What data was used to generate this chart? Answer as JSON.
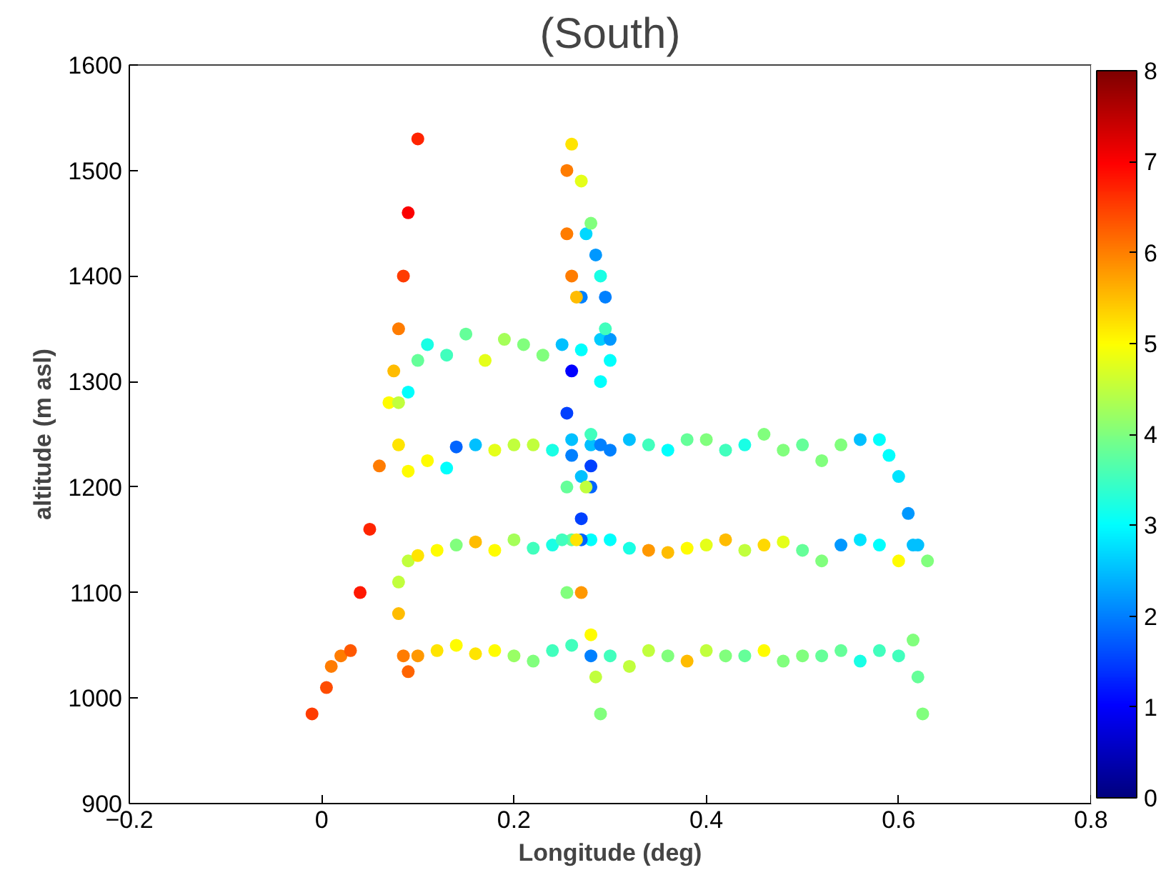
{
  "chart_data": {
    "type": "scatter",
    "title": "(South)",
    "xlabel": "Longitude (deg)",
    "ylabel": "altitude (m asl)",
    "xlim": [
      -0.2,
      0.8
    ],
    "xticks": [
      -0.2,
      0,
      0.2,
      0.4,
      0.6,
      0.8
    ],
    "ylim": [
      900,
      1600
    ],
    "yticks": [
      900,
      1000,
      1100,
      1200,
      1300,
      1400,
      1500,
      1600
    ],
    "clim": [
      0,
      8
    ],
    "cticks": [
      0,
      1,
      2,
      3,
      4,
      5,
      6,
      7,
      8
    ],
    "grid": false,
    "marker": "circle",
    "x": [
      -0.01,
      0.005,
      0.01,
      0.02,
      0.03,
      0.04,
      0.05,
      0.06,
      0.07,
      0.075,
      0.08,
      0.085,
      0.09,
      0.1,
      0.09,
      0.1,
      0.12,
      0.14,
      0.16,
      0.18,
      0.2,
      0.22,
      0.24,
      0.26,
      0.28,
      0.3,
      0.32,
      0.34,
      0.36,
      0.38,
      0.4,
      0.42,
      0.44,
      0.46,
      0.48,
      0.5,
      0.52,
      0.54,
      0.56,
      0.58,
      0.6,
      0.615,
      0.62,
      0.625,
      0.085,
      0.08,
      0.08,
      0.09,
      0.1,
      0.12,
      0.14,
      0.16,
      0.18,
      0.2,
      0.22,
      0.24,
      0.26,
      0.28,
      0.3,
      0.32,
      0.34,
      0.36,
      0.38,
      0.4,
      0.42,
      0.44,
      0.46,
      0.48,
      0.5,
      0.52,
      0.54,
      0.56,
      0.58,
      0.6,
      0.615,
      0.63,
      0.62,
      0.61,
      0.6,
      0.59,
      0.58,
      0.56,
      0.54,
      0.52,
      0.5,
      0.48,
      0.46,
      0.44,
      0.42,
      0.4,
      0.38,
      0.36,
      0.34,
      0.32,
      0.3,
      0.28,
      0.26,
      0.24,
      0.22,
      0.2,
      0.18,
      0.16,
      0.14,
      0.13,
      0.11,
      0.09,
      0.08,
      0.08,
      0.09,
      0.1,
      0.11,
      0.13,
      0.15,
      0.17,
      0.19,
      0.21,
      0.23,
      0.25,
      0.27,
      0.29,
      0.3,
      0.3,
      0.295,
      0.285,
      0.275,
      0.27,
      0.26,
      0.255,
      0.26,
      0.27,
      0.28,
      0.29,
      0.28,
      0.27,
      0.27,
      0.26,
      0.27,
      0.28,
      0.29,
      0.295,
      0.29,
      0.28,
      0.275,
      0.265,
      0.27,
      0.28,
      0.285,
      0.29,
      0.255,
      0.255,
      0.26,
      0.265,
      0.255,
      0.25,
      0.255
    ],
    "values": [
      985,
      1010,
      1030,
      1040,
      1045,
      1100,
      1160,
      1220,
      1280,
      1310,
      1350,
      1400,
      1460,
      1530,
      1025,
      1040,
      1045,
      1050,
      1042,
      1045,
      1040,
      1035,
      1045,
      1050,
      1040,
      1040,
      1030,
      1045,
      1040,
      1035,
      1045,
      1040,
      1040,
      1045,
      1035,
      1040,
      1040,
      1045,
      1035,
      1045,
      1040,
      1055,
      1020,
      985,
      1040,
      1080,
      1110,
      1130,
      1135,
      1140,
      1145,
      1148,
      1140,
      1150,
      1142,
      1145,
      1150,
      1150,
      1150,
      1142,
      1140,
      1138,
      1142,
      1145,
      1150,
      1140,
      1145,
      1148,
      1140,
      1130,
      1145,
      1150,
      1145,
      1130,
      1145,
      1130,
      1145,
      1175,
      1210,
      1230,
      1245,
      1245,
      1240,
      1225,
      1240,
      1235,
      1250,
      1240,
      1235,
      1245,
      1245,
      1235,
      1240,
      1245,
      1235,
      1240,
      1245,
      1235,
      1240,
      1240,
      1235,
      1240,
      1238,
      1218,
      1225,
      1215,
      1240,
      1280,
      1290,
      1320,
      1335,
      1325,
      1345,
      1320,
      1340,
      1335,
      1325,
      1335,
      1330,
      1340,
      1320,
      1340,
      1380,
      1420,
      1440,
      1380,
      1310,
      1270,
      1230,
      1210,
      1220,
      1240,
      1200,
      1170,
      1150,
      1525,
      1490,
      1450,
      1400,
      1350,
      1300,
      1250,
      1200,
      1150,
      1100,
      1060,
      1020,
      985,
      1500,
      1440,
      1400,
      1380,
      1200,
      1150,
      1100
    ],
    "cvalues": [
      6.5,
      6.4,
      6,
      6,
      6.3,
      6.8,
      6.7,
      6,
      5,
      5.5,
      6,
      6.5,
      7,
      6.7,
      6.2,
      5.8,
      5.2,
      5,
      5.2,
      5,
      4.2,
      4,
      3.5,
      3.5,
      2,
      3.5,
      4.5,
      4.5,
      4,
      5.5,
      4.5,
      4,
      3.8,
      5,
      4,
      4,
      3.8,
      3.8,
      3.2,
      3.5,
      3.5,
      4,
      3.8,
      4,
      6,
      5.5,
      4.5,
      4.5,
      5.2,
      5,
      4,
      5.5,
      5,
      4.3,
      3.5,
      3.2,
      3.8,
      3,
      3,
      3.2,
      5.8,
      5.5,
      5,
      4.8,
      5.5,
      4.5,
      5.3,
      4.8,
      3.8,
      4,
      2.2,
      2.8,
      3,
      5,
      2.5,
      4,
      2.5,
      2.2,
      2.8,
      3,
      3,
      2.5,
      4,
      4,
      3.8,
      4,
      4,
      3.2,
      3.5,
      4,
      3.8,
      3,
      3.5,
      2.5,
      2,
      2.5,
      2.5,
      3.2,
      4.5,
      4.5,
      4.8,
      2.5,
      1.8,
      3,
      5,
      5,
      5.2,
      4.5,
      3,
      3.8,
      3.2,
      3.5,
      3.8,
      4.8,
      4.3,
      4,
      4,
      2.5,
      3,
      2.6,
      3,
      2.2,
      2,
      2.2,
      2.7,
      2,
      1,
      1.5,
      2,
      2.5,
      1.5,
      2,
      1.8,
      1.5,
      1.8,
      5.2,
      4.8,
      4,
      3.2,
      3.5,
      3,
      3.5,
      4.5,
      5.2,
      5.8,
      5,
      4.5,
      4,
      6,
      6,
      6,
      5.5,
      3.8,
      3.5,
      4
    ]
  }
}
